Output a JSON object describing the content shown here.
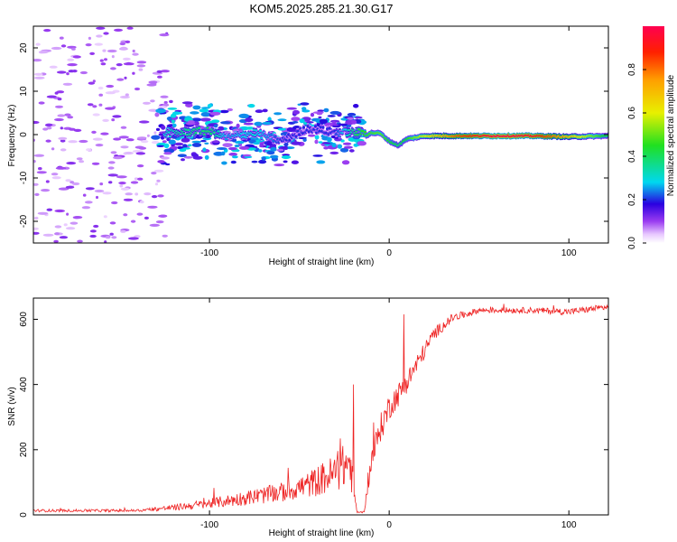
{
  "title": "KOM5.2025.285.21.30.G17",
  "chart_data": [
    {
      "type": "heatmap",
      "name": "spectrogram",
      "xlabel": "Height of straight line (km)",
      "ylabel": "Frequency (Hz)",
      "xlim": [
        -198,
        122
      ],
      "ylim": [
        -25,
        25
      ],
      "xticks": [
        -100,
        0,
        100
      ],
      "xtick_labels": [
        "-100",
        "0",
        "100"
      ],
      "yticks": [
        -20,
        -10,
        0,
        10,
        20
      ],
      "ytick_labels": [
        "-20",
        "-10",
        "0",
        "10",
        "20"
      ],
      "ridge": [
        {
          "x": -125,
          "f": 0.2,
          "amp": 0.3
        },
        {
          "x": -115,
          "f": 0.6,
          "amp": 0.35
        },
        {
          "x": -100,
          "f": 0.8,
          "amp": 0.4
        },
        {
          "x": -90,
          "f": -0.8,
          "amp": 0.25
        },
        {
          "x": -75,
          "f": 0.5,
          "amp": 0.3
        },
        {
          "x": -60,
          "f": -1.5,
          "amp": 0.2
        },
        {
          "x": -45,
          "f": 1.5,
          "amp": 0.2
        },
        {
          "x": -30,
          "f": 0.5,
          "amp": 0.2
        },
        {
          "x": -15,
          "f": 0.5,
          "amp": 0.45
        },
        {
          "x": -5,
          "f": 0.3,
          "amp": 0.5
        },
        {
          "x": 0,
          "f": -1.5,
          "amp": 0.45
        },
        {
          "x": 5,
          "f": -2.5,
          "amp": 0.4
        },
        {
          "x": 10,
          "f": -1.0,
          "amp": 0.45
        },
        {
          "x": 20,
          "f": -0.3,
          "amp": 0.6
        },
        {
          "x": 40,
          "f": -0.3,
          "amp": 0.85
        },
        {
          "x": 60,
          "f": -0.3,
          "amp": 1.0
        },
        {
          "x": 80,
          "f": -0.3,
          "amp": 0.95
        },
        {
          "x": 100,
          "f": -0.5,
          "amp": 0.7
        },
        {
          "x": 122,
          "f": -0.3,
          "amp": 0.4
        }
      ]
    },
    {
      "type": "colorbar",
      "name": "colorbar",
      "label": "Normalized spectral amplitude",
      "range": [
        0,
        1
      ],
      "ticks": [
        0.0,
        0.2,
        0.4,
        0.6,
        0.8
      ],
      "tick_labels": [
        "0.0",
        "0.2",
        "0.4",
        "0.6",
        "0.8"
      ]
    },
    {
      "type": "line",
      "name": "snr",
      "xlabel": "Height of straight line (km)",
      "ylabel": "SNR (v/v)",
      "xlim": [
        -198,
        122
      ],
      "ylim": [
        0,
        665
      ],
      "xticks": [
        -100,
        0,
        100
      ],
      "xtick_labels": [
        "-100",
        "0",
        "100"
      ],
      "yticks": [
        0,
        200,
        400,
        600
      ],
      "ytick_labels": [
        "0",
        "200",
        "400",
        "600"
      ],
      "color": "#ee2222",
      "envelope": [
        {
          "x": -198,
          "base": 12,
          "noise": 8
        },
        {
          "x": -140,
          "base": 12,
          "noise": 8
        },
        {
          "x": -120,
          "base": 20,
          "noise": 18
        },
        {
          "x": -100,
          "base": 30,
          "noise": 30
        },
        {
          "x": -80,
          "base": 45,
          "noise": 45
        },
        {
          "x": -60,
          "base": 60,
          "noise": 60
        },
        {
          "x": -45,
          "base": 80,
          "noise": 80
        },
        {
          "x": -30,
          "base": 110,
          "noise": 120
        },
        {
          "x": -22,
          "base": 140,
          "noise": 150
        },
        {
          "x": -18,
          "base": 8,
          "noise": 5
        },
        {
          "x": -14,
          "base": 8,
          "noise": 5
        },
        {
          "x": -10,
          "base": 150,
          "noise": 80
        },
        {
          "x": -5,
          "base": 250,
          "noise": 90
        },
        {
          "x": 0,
          "base": 320,
          "noise": 80
        },
        {
          "x": 8,
          "base": 380,
          "noise": 70
        },
        {
          "x": 15,
          "base": 450,
          "noise": 60
        },
        {
          "x": 25,
          "base": 550,
          "noise": 40
        },
        {
          "x": 35,
          "base": 600,
          "noise": 25
        },
        {
          "x": 50,
          "base": 625,
          "noise": 18
        },
        {
          "x": 80,
          "base": 625,
          "noise": 18
        },
        {
          "x": 100,
          "base": 620,
          "noise": 20
        },
        {
          "x": 122,
          "base": 635,
          "noise": 20
        }
      ],
      "spikes": [
        {
          "x": 8,
          "y": 615
        },
        {
          "x": -20,
          "y": 400
        }
      ]
    }
  ]
}
